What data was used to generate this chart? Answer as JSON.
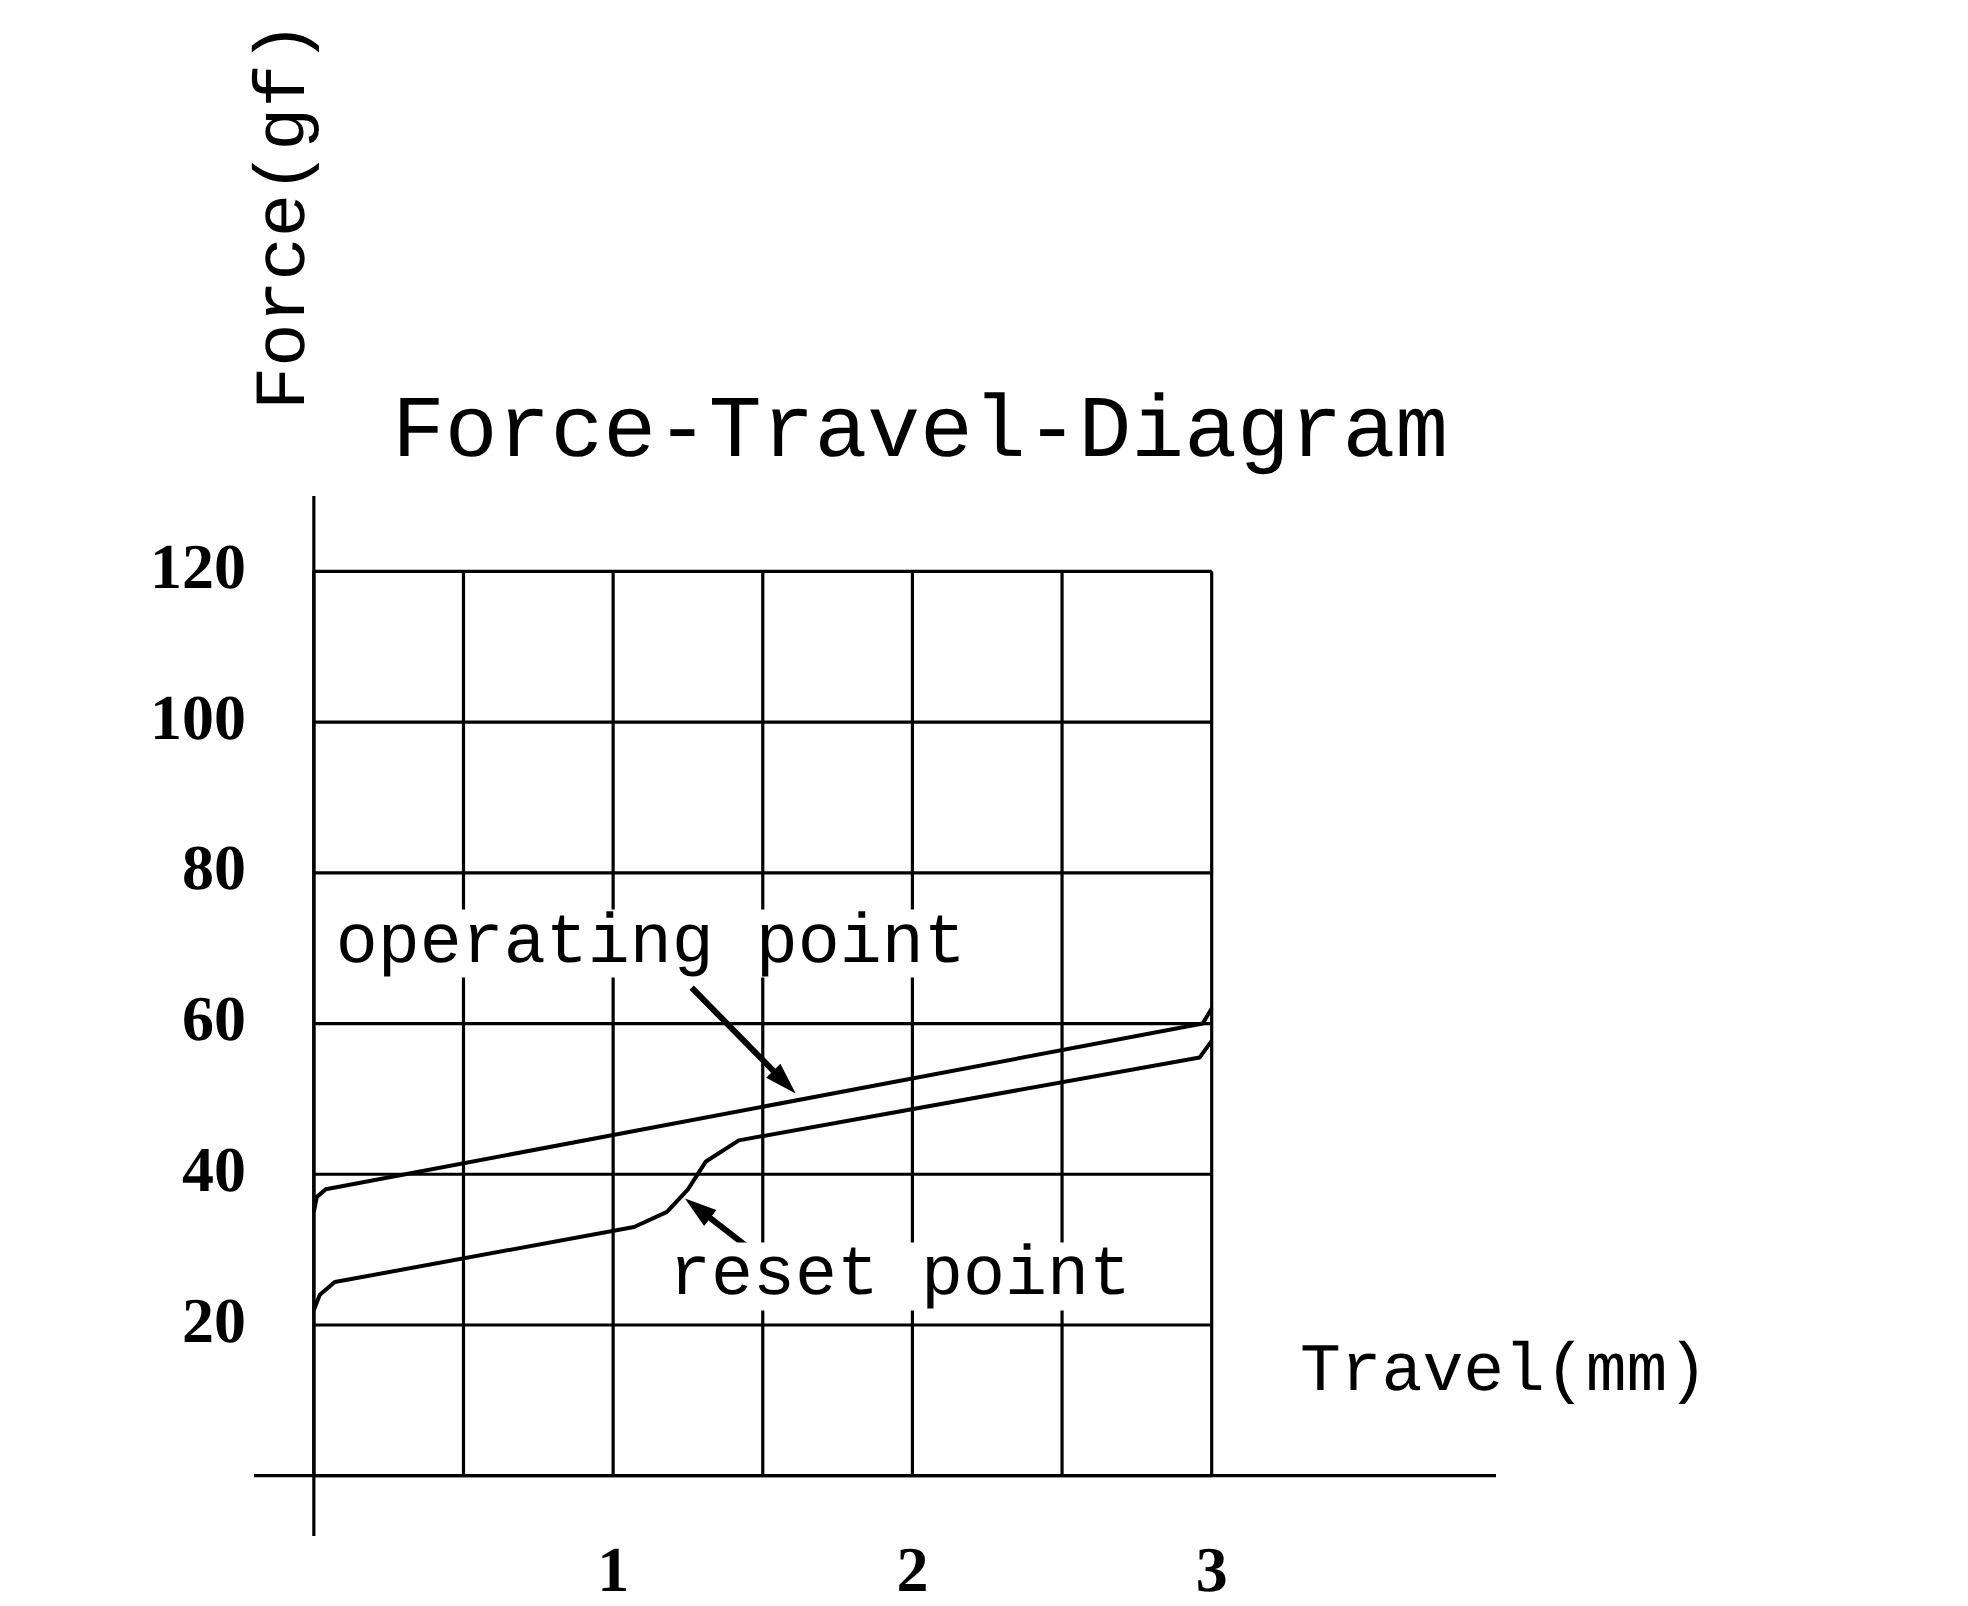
{
  "chart_data": {
    "type": "line",
    "title": "Force-Travel-Diagram",
    "xlabel": "Travel(mm)",
    "ylabel": "Force(gf)",
    "xlim": [
      -0.2,
      3.95
    ],
    "ylim": [
      -8,
      130
    ],
    "xticks": [
      {
        "value": 0,
        "label": null
      },
      {
        "value": 0.5,
        "label": null
      },
      1,
      {
        "value": 1.5,
        "label": null
      },
      2,
      {
        "value": 2.5,
        "label": null
      },
      3
    ],
    "yticks": [
      {
        "value": 0,
        "label": null
      },
      20,
      40,
      60,
      80,
      100,
      120
    ],
    "grid": true,
    "legend": false,
    "marker": "none",
    "line_style": "solid",
    "series": [
      {
        "color": "#000000",
        "x": [
          0,
          0.01,
          0.04,
          2.97,
          3
        ],
        "values": [
          35,
          37,
          38,
          60,
          62
        ]
      },
      {
        "color": "#000000",
        "x": [
          0,
          0.02,
          0.07,
          1.07,
          1.18,
          1.25,
          1.31,
          1.42,
          2.96,
          3
        ],
        "values": [
          22,
          24,
          25.7,
          33,
          35,
          38,
          41.7,
          44.5,
          55.5,
          57.7
        ]
      }
    ],
    "annotations": [
      {
        "text": "operating point",
        "x": 1.61,
        "y": 50.7
      },
      {
        "text": "reset point",
        "x": 1.24,
        "y": 36.8
      }
    ]
  }
}
